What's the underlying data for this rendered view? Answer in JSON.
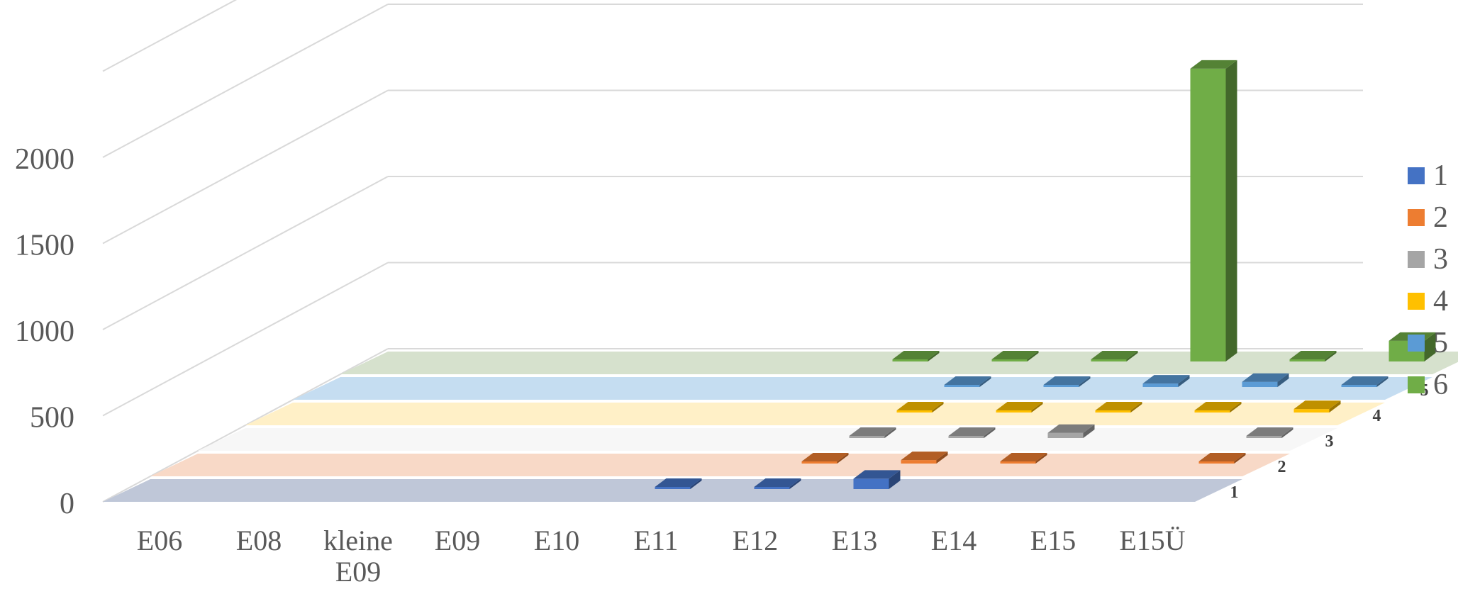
{
  "chart_data": {
    "type": "bar",
    "subtype": "3d-column",
    "title": "",
    "xlabel": "",
    "ylabel": "",
    "categories": [
      "E06",
      "E08",
      "kleine E09",
      "E09",
      "E10",
      "E11",
      "E12",
      "E13",
      "E14",
      "E15",
      "E15Ü"
    ],
    "y_ticks": [
      0,
      500,
      1000,
      1500,
      2000
    ],
    "ylim": [
      0,
      2500
    ],
    "grid": true,
    "legend_position": "right",
    "series": [
      {
        "name": "1",
        "depth_label": "1",
        "color": "#4472C4",
        "wall_color": "#BFC7D8",
        "values": [
          0,
          0,
          0,
          0,
          0,
          5,
          5,
          60,
          0,
          0,
          0
        ]
      },
      {
        "name": "2",
        "depth_label": "2",
        "color": "#ED7D31",
        "wall_color": "#F8D9C7",
        "values": [
          0,
          0,
          0,
          0,
          0,
          0,
          10,
          20,
          5,
          0,
          5
        ]
      },
      {
        "name": "3",
        "depth_label": "3",
        "color": "#A5A5A5",
        "wall_color": "#F7F7F7",
        "values": [
          0,
          0,
          0,
          0,
          0,
          0,
          5,
          10,
          30,
          0,
          5
        ]
      },
      {
        "name": "4",
        "depth_label": "4",
        "color": "#FFC000",
        "wall_color": "#FFF0C7",
        "values": [
          0,
          0,
          0,
          0,
          0,
          0,
          5,
          5,
          5,
          5,
          20
        ]
      },
      {
        "name": "5",
        "depth_label": "5",
        "color": "#5B9BD5",
        "wall_color": "#C5DDF1",
        "values": [
          0,
          0,
          0,
          0,
          0,
          0,
          5,
          5,
          20,
          30,
          5
        ]
      },
      {
        "name": "6",
        "depth_label": "6",
        "color": "#70AD47",
        "wall_color": "#D6E1CD",
        "values": [
          0,
          0,
          0,
          0,
          0,
          5,
          10,
          5,
          1700,
          5,
          120
        ]
      }
    ]
  }
}
